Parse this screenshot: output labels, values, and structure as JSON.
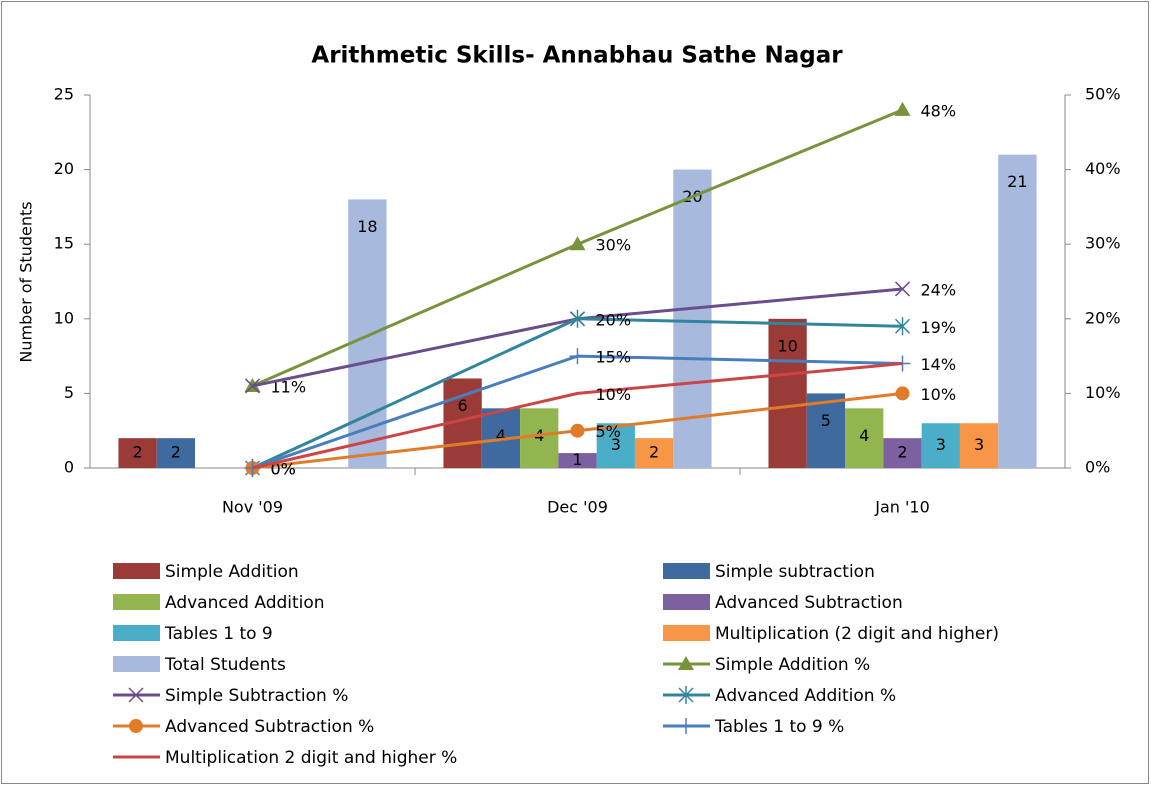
{
  "chart_data": {
    "type": "bar_line",
    "title": "Arithmetic Skills- Annabhau Sathe Nagar",
    "y_label": "Number of Students",
    "categories": [
      "Nov '09",
      "Dec '09",
      "Jan '10"
    ],
    "ylim": [
      0,
      25
    ],
    "yticks": [
      0,
      5,
      10,
      15,
      20,
      25
    ],
    "y2lim": [
      0,
      50
    ],
    "y2ticks": [
      {
        "value": 0,
        "label": "0%"
      },
      {
        "value": 10,
        "label": "10%"
      },
      {
        "value": 20,
        "label": "20%"
      },
      {
        "value": 30,
        "label": "30%"
      },
      {
        "value": 40,
        "label": "40%"
      },
      {
        "value": 50,
        "label": "50%"
      }
    ],
    "grid": false,
    "series": [
      {
        "name": "Simple Addition",
        "color": "#9b3b38",
        "type": "bar",
        "values": [
          2,
          6,
          10
        ]
      },
      {
        "name": "Simple subtraction",
        "color": "#3e6aa0",
        "type": "bar",
        "values": [
          2,
          4,
          5
        ]
      },
      {
        "name": "Advanced Addition",
        "color": "#92b550",
        "type": "bar",
        "values": [
          null,
          4,
          4
        ]
      },
      {
        "name": "Advanced Subtraction",
        "color": "#7c60a0",
        "type": "bar",
        "values": [
          null,
          1,
          2
        ]
      },
      {
        "name": "Tables 1 to 9",
        "color": "#4aaec8",
        "type": "bar",
        "values": [
          null,
          3,
          3
        ]
      },
      {
        "name": "Multiplication (2 digit and higher)",
        "color": "#f79646",
        "type": "bar",
        "values": [
          null,
          2,
          3
        ]
      },
      {
        "name": "Total Students",
        "color": "#a7b9dc",
        "type": "bar",
        "values": [
          18,
          20,
          21
        ]
      },
      {
        "name": "Simple Addition %",
        "color": "#77933c",
        "type": "line",
        "axis": "y2",
        "marker": "triangle",
        "values": [
          11,
          30,
          48
        ],
        "value_labels": [
          "11%",
          "30%",
          "48%"
        ]
      },
      {
        "name": "Simple Subtraction %",
        "color": "#6a4d8d",
        "type": "line",
        "axis": "y2",
        "marker": "x",
        "values": [
          11,
          20,
          24
        ],
        "value_labels": [
          null,
          null,
          "24%"
        ]
      },
      {
        "name": "Advanced Addition %",
        "color": "#31859c",
        "type": "line",
        "axis": "y2",
        "marker": "star",
        "values": [
          0,
          20,
          19
        ],
        "value_labels": [
          "0%",
          "20%",
          "19%"
        ]
      },
      {
        "name": "Advanced Subtraction %",
        "color": "#e07b29",
        "type": "line",
        "axis": "y2",
        "marker": "circle",
        "values": [
          0,
          5,
          10
        ],
        "value_labels": [
          "0%",
          "5%",
          "10%"
        ]
      },
      {
        "name": "Tables 1 to 9 %",
        "color": "#4a7ebb",
        "type": "line",
        "axis": "y2",
        "marker": "plus",
        "values": [
          0,
          15,
          14
        ],
        "value_labels": [
          null,
          "15%",
          null
        ]
      },
      {
        "name": "Multiplication 2 digit and higher %",
        "color": "#cc4444",
        "type": "line",
        "axis": "y2",
        "marker": "none",
        "values": [
          0,
          10,
          14
        ],
        "value_labels": [
          null,
          "10%",
          "14%"
        ]
      }
    ]
  }
}
